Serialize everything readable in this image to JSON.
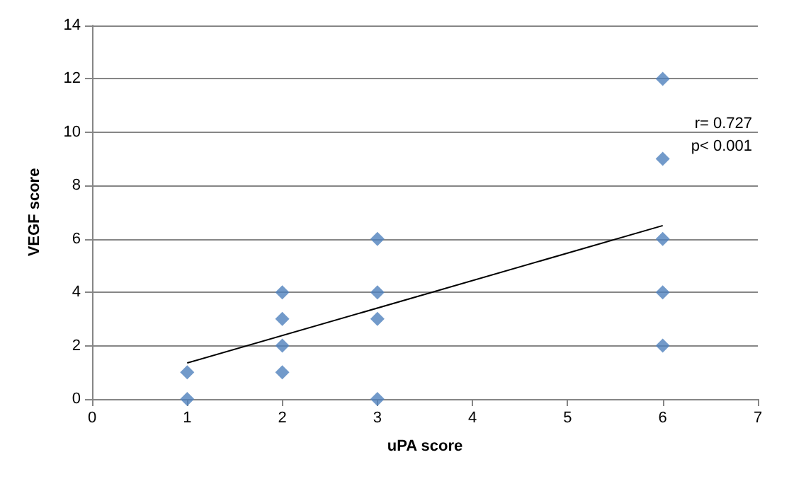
{
  "chart_data": {
    "type": "scatter",
    "xlabel": "uPA score",
    "ylabel": "VEGF score",
    "xlim": [
      0,
      7
    ],
    "xticks": [
      0,
      1,
      2,
      3,
      4,
      5,
      6,
      7
    ],
    "ylim": [
      0,
      14
    ],
    "yticks": [
      0,
      2,
      4,
      6,
      8,
      10,
      12,
      14
    ],
    "grid": "y",
    "marker": "diamond",
    "annotations": [
      "r= 0.727",
      "p< 0.001"
    ],
    "series": [
      {
        "color": "#4f81bd",
        "x": [
          1,
          1,
          2,
          2,
          2,
          2,
          3,
          3,
          3,
          3,
          6,
          6,
          6,
          6,
          6
        ],
        "values": [
          1,
          0,
          4,
          3,
          2,
          1,
          6,
          4,
          3,
          0,
          12,
          9,
          6,
          4,
          2
        ]
      },
      {
        "type": "line",
        "color": "#000000",
        "marker": "none",
        "line_style": "solid",
        "x": [
          1,
          6
        ],
        "values": [
          1.35,
          6.5
        ]
      }
    ]
  }
}
